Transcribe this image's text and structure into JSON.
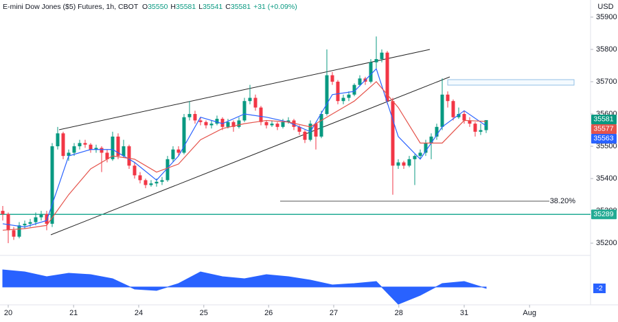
{
  "chart_data": {
    "type": "candlestick",
    "title": "E-mini Dow Jones ($5) Futures, 1h, CBOT",
    "ohlc_labels": [
      "O",
      "H",
      "L",
      "C"
    ],
    "change": "+31 (+0.09%)",
    "currency": "USD",
    "up_color": "#089981",
    "down_color": "#f23645",
    "xlim": [
      -0.5,
      107
    ],
    "xticks": [
      {
        "value": 1,
        "label": "20"
      },
      {
        "value": 12.9,
        "label": "21"
      },
      {
        "value": 24.75,
        "label": "24"
      },
      {
        "value": 36.6,
        "label": "25"
      },
      {
        "value": 48.4,
        "label": "26"
      },
      {
        "value": 60.25,
        "label": "27"
      },
      {
        "value": 72.1,
        "label": "28"
      },
      {
        "value": 84,
        "label": "31"
      },
      {
        "value": 95.9,
        "label": "Aug"
      }
    ],
    "ylim": [
      35162,
      35953
    ],
    "yticks": [
      35200,
      35300,
      35400,
      35500,
      35600,
      35700,
      35800,
      35900
    ],
    "x": [
      0,
      1,
      2,
      3,
      4,
      5,
      6,
      7,
      8,
      9,
      10,
      11,
      12,
      13,
      14,
      15,
      16,
      17,
      18,
      19,
      20,
      21,
      22,
      23,
      24,
      25,
      26,
      27,
      28,
      29,
      30,
      31,
      32,
      33,
      34,
      35,
      36,
      37,
      38,
      39,
      40,
      41,
      42,
      43,
      44,
      45,
      46,
      47,
      48,
      49,
      50,
      51,
      52,
      53,
      54,
      55,
      56,
      57,
      58,
      59,
      60,
      61,
      62,
      63,
      64,
      65,
      66,
      67,
      68,
      69,
      70,
      71,
      72,
      73,
      74,
      75,
      76,
      77,
      78,
      79,
      80,
      81,
      82,
      83,
      84,
      85,
      86,
      87,
      88
    ],
    "ohlc": [
      [
        35300,
        35315,
        35270,
        35290
      ],
      [
        35290,
        35295,
        35200,
        35240
      ],
      [
        35240,
        35250,
        35210,
        35220
      ],
      [
        35220,
        35265,
        35215,
        35255
      ],
      [
        35255,
        35270,
        35245,
        35260
      ],
      [
        35260,
        35275,
        35250,
        35265
      ],
      [
        35265,
        35295,
        35255,
        35280
      ],
      [
        35280,
        35300,
        35270,
        35290
      ],
      [
        35290,
        35300,
        35240,
        35260
      ],
      [
        35260,
        35510,
        35250,
        35500
      ],
      [
        35500,
        35560,
        35490,
        35540
      ],
      [
        35540,
        35545,
        35460,
        35470
      ],
      [
        35470,
        35490,
        35455,
        35480
      ],
      [
        35480,
        35510,
        35470,
        35500
      ],
      [
        35500,
        35520,
        35490,
        35510
      ],
      [
        35510,
        35520,
        35495,
        35505
      ],
      [
        35505,
        35510,
        35480,
        35490
      ],
      [
        35490,
        35505,
        35480,
        35495
      ],
      [
        35495,
        35500,
        35420,
        35480
      ],
      [
        35480,
        35490,
        35450,
        35460
      ],
      [
        35460,
        35545,
        35455,
        35530
      ],
      [
        35530,
        35540,
        35460,
        35470
      ],
      [
        35470,
        35520,
        35465,
        35500
      ],
      [
        35500,
        35505,
        35430,
        35440
      ],
      [
        35440,
        35450,
        35400,
        35410
      ],
      [
        35410,
        35420,
        35385,
        35395
      ],
      [
        35395,
        35400,
        35370,
        35380
      ],
      [
        35380,
        35395,
        35375,
        35385
      ],
      [
        35385,
        35400,
        35375,
        35390
      ],
      [
        35390,
        35405,
        35380,
        35395
      ],
      [
        35395,
        35470,
        35390,
        35460
      ],
      [
        35460,
        35500,
        35450,
        35490
      ],
      [
        35490,
        35500,
        35470,
        35480
      ],
      [
        35480,
        35600,
        35475,
        35590
      ],
      [
        35590,
        35640,
        35580,
        35600
      ],
      [
        35600,
        35610,
        35570,
        35580
      ],
      [
        35580,
        35590,
        35565,
        35575
      ],
      [
        35575,
        35580,
        35555,
        35565
      ],
      [
        35565,
        35580,
        35555,
        35570
      ],
      [
        35570,
        35595,
        35565,
        35585
      ],
      [
        35585,
        35590,
        35550,
        35560
      ],
      [
        35560,
        35585,
        35555,
        35575
      ],
      [
        35575,
        35580,
        35545,
        35560
      ],
      [
        35560,
        35590,
        35555,
        35580
      ],
      [
        35580,
        35650,
        35575,
        35640
      ],
      [
        35640,
        35690,
        35630,
        35650
      ],
      [
        35650,
        35660,
        35610,
        35620
      ],
      [
        35620,
        35625,
        35565,
        35575
      ],
      [
        35575,
        35580,
        35555,
        35565
      ],
      [
        35565,
        35580,
        35560,
        35570
      ],
      [
        35570,
        35575,
        35550,
        35560
      ],
      [
        35560,
        35585,
        35555,
        35575
      ],
      [
        35575,
        35590,
        35570,
        35580
      ],
      [
        35580,
        35585,
        35550,
        35560
      ],
      [
        35560,
        35565,
        35535,
        35545
      ],
      [
        35545,
        35550,
        35510,
        35520
      ],
      [
        35520,
        35580,
        35515,
        35570
      ],
      [
        35570,
        35575,
        35490,
        35530
      ],
      [
        35530,
        35610,
        35525,
        35600
      ],
      [
        35600,
        35800,
        35595,
        35720
      ],
      [
        35720,
        35730,
        35690,
        35700
      ],
      [
        35700,
        35705,
        35630,
        35640
      ],
      [
        35640,
        35660,
        35630,
        35650
      ],
      [
        35650,
        35670,
        35640,
        35660
      ],
      [
        35660,
        35695,
        35655,
        35690
      ],
      [
        35690,
        35720,
        35685,
        35710
      ],
      [
        35710,
        35715,
        35690,
        35700
      ],
      [
        35700,
        35770,
        35695,
        35760
      ],
      [
        35760,
        35840,
        35740,
        35770
      ],
      [
        35770,
        35800,
        35760,
        35790
      ],
      [
        35790,
        35795,
        35630,
        35640
      ],
      [
        35640,
        35650,
        35350,
        35440
      ],
      [
        35440,
        35460,
        35430,
        35450
      ],
      [
        35450,
        35455,
        35430,
        35440
      ],
      [
        35440,
        35470,
        35435,
        35460
      ],
      [
        35460,
        35475,
        35380,
        35470
      ],
      [
        35470,
        35490,
        35460,
        35480
      ],
      [
        35480,
        35520,
        35470,
        35510
      ],
      [
        35510,
        35540,
        35460,
        35530
      ],
      [
        35530,
        35570,
        35520,
        35560
      ],
      [
        35560,
        35710,
        35550,
        35660
      ],
      [
        35660,
        35670,
        35620,
        35640
      ],
      [
        35640,
        35645,
        35580,
        35590
      ],
      [
        35590,
        35620,
        35585,
        35600
      ],
      [
        35600,
        35610,
        35570,
        35580
      ],
      [
        35580,
        35590,
        35560,
        35570
      ],
      [
        35570,
        35575,
        35530,
        35545
      ],
      [
        35545,
        35570,
        35535,
        35550
      ],
      [
        35550,
        35581,
        35541,
        35581
      ]
    ],
    "series": [
      {
        "color": "#2962ff",
        "x": [
          0,
          4,
          8,
          12,
          16,
          20,
          24,
          28,
          32,
          36,
          40,
          44,
          48,
          52,
          56,
          60,
          64,
          68,
          72,
          76,
          80,
          84,
          88
        ],
        "values": [
          35260,
          35250,
          35270,
          35470,
          35490,
          35490,
          35450,
          35395,
          35470,
          35590,
          35570,
          35600,
          35590,
          35575,
          35545,
          35660,
          35670,
          35740,
          35530,
          35460,
          35560,
          35610,
          35563
        ]
      },
      {
        "color": "#e5534b",
        "x": [
          0,
          4,
          8,
          12,
          16,
          20,
          24,
          28,
          32,
          36,
          40,
          44,
          48,
          52,
          56,
          60,
          64,
          68,
          72,
          76,
          80,
          84,
          88
        ],
        "values": [
          35240,
          35245,
          35255,
          35350,
          35430,
          35470,
          35460,
          35420,
          35445,
          35520,
          35555,
          35570,
          35580,
          35575,
          35560,
          35600,
          35640,
          35700,
          35620,
          35510,
          35510,
          35580,
          35577
        ]
      }
    ],
    "level": {
      "value": 35289,
      "color": "#22ab94"
    },
    "fib": {
      "value": 35330,
      "label": "38.20%"
    },
    "oscillator": {
      "color": "#2962ff",
      "ylim": [
        -38,
        38
      ],
      "x": [
        0,
        4,
        8,
        12,
        16,
        20,
        24,
        28,
        32,
        36,
        40,
        44,
        48,
        52,
        56,
        60,
        64,
        68,
        72,
        76,
        80,
        84,
        88
      ],
      "values": [
        25,
        22,
        15,
        20,
        18,
        12,
        -3,
        -5,
        5,
        22,
        15,
        12,
        18,
        15,
        10,
        3,
        5,
        8,
        -25,
        -12,
        5,
        8,
        -2
      ]
    }
  }
}
